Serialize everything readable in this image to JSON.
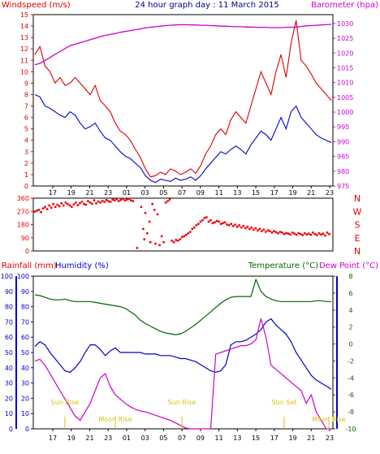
{
  "title": "24 hour graph day : 11 March 2015",
  "colors": {
    "wind": "#dd0000",
    "windavg": "#0000cc",
    "baro": "#cc00cc",
    "dir": "#ee0000",
    "rain": "#0000cc",
    "hum": "#0000cc",
    "temp": "#006600",
    "dew": "#cc00cc",
    "event": "#d8c000",
    "grid": "#000000"
  },
  "chart_data": [
    {
      "id": "wind",
      "type": "line",
      "title": "24 hour graph day : 11 March 2015",
      "x_ticks": [
        "17",
        "19",
        "21",
        "23",
        "01",
        "03",
        "05",
        "07",
        "09",
        "11",
        "13",
        "15",
        "17",
        "19",
        "21",
        "23"
      ],
      "y_left_label": "Windspeed (m/s)",
      "y_left_range": [
        0,
        15
      ],
      "y_left_ticks": [
        0,
        1,
        2,
        3,
        4,
        5,
        6,
        7,
        8,
        9,
        10,
        11,
        12,
        13,
        14,
        15
      ],
      "y_right_label": "Barometer (hpa)",
      "y_right_range": [
        975,
        1033
      ],
      "y_right_ticks": [
        975,
        980,
        985,
        990,
        995,
        1000,
        1005,
        1010,
        1015,
        1020,
        1025,
        1030
      ],
      "series": [
        {
          "key": "gust",
          "color_key": "wind",
          "values": [
            11.5,
            12.2,
            10.5,
            10.0,
            9.0,
            9.5,
            8.8,
            9.0,
            9.5,
            9.0,
            8.5,
            8.0,
            8.8,
            7.5,
            7.0,
            6.5,
            5.5,
            4.8,
            4.5,
            4.0,
            3.2,
            2.5,
            1.5,
            0.8,
            0.9,
            1.2,
            1.0,
            1.5,
            1.3,
            1.0,
            1.2,
            1.5,
            1.1,
            1.8,
            2.8,
            3.5,
            4.5,
            5.0,
            4.5,
            5.8,
            6.5,
            6.0,
            5.5,
            7.0,
            8.5,
            10.0,
            9.0,
            8.0,
            10.0,
            11.5,
            9.5,
            12.5,
            14.5,
            11.0,
            10.5,
            9.8,
            9.0,
            8.5,
            8.0,
            7.5
          ]
        },
        {
          "key": "avg",
          "color_key": "windavg",
          "values": [
            8.0,
            7.8,
            7.0,
            6.8,
            6.5,
            6.2,
            6.0,
            6.5,
            6.2,
            5.5,
            5.0,
            5.2,
            5.5,
            4.8,
            4.2,
            4.0,
            3.5,
            3.0,
            2.6,
            2.4,
            2.0,
            1.6,
            0.9,
            0.5,
            0.3,
            0.6,
            0.5,
            0.4,
            0.7,
            0.5,
            0.6,
            0.8,
            0.5,
            0.9,
            1.5,
            2.0,
            2.5,
            3.0,
            2.8,
            3.2,
            3.5,
            3.2,
            2.8,
            3.6,
            4.2,
            4.8,
            4.5,
            4.0,
            5.0,
            6.0,
            5.0,
            6.5,
            7.0,
            6.0,
            5.5,
            5.0,
            4.5,
            4.2,
            4.0,
            3.8
          ]
        },
        {
          "key": "baro",
          "color_key": "baro",
          "axis": "right",
          "values": [
            1016.0,
            1016.5,
            1017.5,
            1018.5,
            1019.5,
            1020.5,
            1021.5,
            1022.5,
            1023.0,
            1023.5,
            1024.0,
            1024.5,
            1025.0,
            1025.5,
            1026.0,
            1026.3,
            1026.6,
            1027.0,
            1027.3,
            1027.6,
            1027.9,
            1028.2,
            1028.5,
            1028.7,
            1028.9,
            1029.1,
            1029.3,
            1029.4,
            1029.5,
            1029.6,
            1029.6,
            1029.5,
            1029.5,
            1029.4,
            1029.4,
            1029.3,
            1029.2,
            1029.1,
            1029.1,
            1029.0,
            1028.9,
            1028.9,
            1028.8,
            1028.8,
            1028.7,
            1028.7,
            1028.7,
            1028.6,
            1028.6,
            1028.6,
            1028.7,
            1028.7,
            1028.8,
            1029.0,
            1029.2,
            1029.3,
            1029.4,
            1029.5,
            1029.6,
            1029.7
          ]
        }
      ]
    },
    {
      "id": "dir",
      "type": "scatter",
      "y_range": [
        0,
        360
      ],
      "y_ticks": [
        0,
        90,
        180,
        270,
        360
      ],
      "right_labels": [
        "N",
        "W",
        "S",
        "E",
        "N"
      ],
      "color_key": "dir",
      "points": [
        [
          0,
          268
        ],
        [
          2,
          275
        ],
        [
          4,
          280
        ],
        [
          6,
          265
        ],
        [
          8,
          290
        ],
        [
          10,
          300
        ],
        [
          12,
          285
        ],
        [
          14,
          310
        ],
        [
          16,
          295
        ],
        [
          18,
          320
        ],
        [
          20,
          300
        ],
        [
          22,
          315
        ],
        [
          24,
          305
        ],
        [
          26,
          325
        ],
        [
          28,
          310
        ],
        [
          30,
          330
        ],
        [
          32,
          320
        ],
        [
          34,
          310
        ],
        [
          36,
          300
        ],
        [
          38,
          318
        ],
        [
          40,
          330
        ],
        [
          42,
          312
        ],
        [
          44,
          325
        ],
        [
          46,
          335
        ],
        [
          48,
          320
        ],
        [
          50,
          315
        ],
        [
          52,
          340
        ],
        [
          54,
          330
        ],
        [
          56,
          322
        ],
        [
          58,
          345
        ],
        [
          60,
          325
        ],
        [
          62,
          338
        ],
        [
          64,
          330
        ],
        [
          66,
          342
        ],
        [
          68,
          335
        ],
        [
          70,
          348
        ],
        [
          72,
          340
        ],
        [
          74,
          335
        ],
        [
          76,
          350
        ],
        [
          78,
          345
        ],
        [
          80,
          352
        ],
        [
          82,
          340
        ],
        [
          84,
          348
        ],
        [
          86,
          355
        ],
        [
          88,
          345
        ],
        [
          90,
          350
        ],
        [
          92,
          355
        ],
        [
          94,
          345
        ],
        [
          96,
          340
        ],
        [
          100,
          20
        ],
        [
          104,
          300
        ],
        [
          106,
          150
        ],
        [
          107,
          80
        ],
        [
          108,
          260
        ],
        [
          110,
          120
        ],
        [
          112,
          200
        ],
        [
          113,
          60
        ],
        [
          115,
          320
        ],
        [
          117,
          280
        ],
        [
          118,
          50
        ],
        [
          120,
          250
        ],
        [
          122,
          40
        ],
        [
          124,
          100
        ],
        [
          126,
          60
        ],
        [
          128,
          330
        ],
        [
          130,
          340
        ],
        [
          132,
          350
        ],
        [
          134,
          70
        ],
        [
          136,
          60
        ],
        [
          138,
          75
        ],
        [
          140,
          70
        ],
        [
          142,
          80
        ],
        [
          144,
          95
        ],
        [
          146,
          100
        ],
        [
          148,
          110
        ],
        [
          150,
          120
        ],
        [
          152,
          130
        ],
        [
          154,
          150
        ],
        [
          156,
          160
        ],
        [
          158,
          175
        ],
        [
          160,
          185
        ],
        [
          162,
          200
        ],
        [
          164,
          210
        ],
        [
          166,
          225
        ],
        [
          168,
          230
        ],
        [
          170,
          200
        ],
        [
          172,
          210
        ],
        [
          174,
          190
        ],
        [
          176,
          195
        ],
        [
          178,
          205
        ],
        [
          180,
          200
        ],
        [
          182,
          185
        ],
        [
          184,
          190
        ],
        [
          186,
          195
        ],
        [
          188,
          180
        ],
        [
          190,
          175
        ],
        [
          192,
          185
        ],
        [
          194,
          170
        ],
        [
          196,
          180
        ],
        [
          198,
          165
        ],
        [
          200,
          175
        ],
        [
          202,
          160
        ],
        [
          204,
          170
        ],
        [
          206,
          155
        ],
        [
          208,
          165
        ],
        [
          210,
          150
        ],
        [
          212,
          160
        ],
        [
          214,
          145
        ],
        [
          216,
          155
        ],
        [
          218,
          140
        ],
        [
          220,
          150
        ],
        [
          222,
          135
        ],
        [
          224,
          145
        ],
        [
          226,
          130
        ],
        [
          228,
          140
        ],
        [
          230,
          135
        ],
        [
          232,
          125
        ],
        [
          234,
          135
        ],
        [
          236,
          128
        ],
        [
          238,
          120
        ],
        [
          240,
          130
        ],
        [
          242,
          125
        ],
        [
          244,
          115
        ],
        [
          246,
          122
        ],
        [
          248,
          118
        ],
        [
          250,
          112
        ],
        [
          252,
          125
        ],
        [
          254,
          118
        ],
        [
          256,
          110
        ],
        [
          258,
          122
        ],
        [
          260,
          115
        ],
        [
          262,
          108
        ],
        [
          264,
          120
        ],
        [
          266,
          112
        ],
        [
          268,
          118
        ],
        [
          270,
          110
        ],
        [
          272,
          125
        ],
        [
          274,
          115
        ],
        [
          276,
          108
        ],
        [
          278,
          120
        ],
        [
          280,
          112
        ],
        [
          282,
          118
        ],
        [
          284,
          105
        ],
        [
          286,
          125
        ],
        [
          288,
          115
        ]
      ]
    },
    {
      "id": "thermo",
      "type": "line",
      "x_ticks": [
        "17",
        "19",
        "21",
        "23",
        "01",
        "03",
        "05",
        "07",
        "09",
        "11",
        "13",
        "15",
        "17",
        "19",
        "21",
        "23"
      ],
      "y_left_label": "Rainfall (mm)",
      "y_left_range": [
        0,
        100
      ],
      "y_left_ticks": [
        0,
        10,
        20,
        30,
        40,
        50,
        60,
        70,
        80,
        90,
        100
      ],
      "y_left2_label": "Humidity (%)",
      "y_left2_range": [
        0,
        100
      ],
      "y_left2_ticks": [
        0,
        10,
        20,
        30,
        40,
        50,
        60,
        70,
        80,
        90,
        100
      ],
      "y_right_label": "Temperature (°C)",
      "y_right2_label": "Dew Point (°C)",
      "y_right_range": [
        -10,
        8
      ],
      "y_right_ticks": [
        -10,
        -8,
        -6,
        -4,
        -2,
        0,
        2,
        4,
        6,
        8
      ],
      "series": [
        {
          "key": "temp",
          "color_key": "temp",
          "axis": "right",
          "values": [
            5.8,
            5.7,
            5.5,
            5.3,
            5.2,
            5.2,
            5.3,
            5.1,
            5.0,
            5.0,
            5.0,
            5.0,
            4.9,
            4.8,
            4.7,
            4.6,
            4.5,
            4.4,
            4.2,
            3.8,
            3.4,
            2.8,
            2.4,
            2.1,
            1.8,
            1.5,
            1.3,
            1.2,
            1.1,
            1.2,
            1.5,
            1.9,
            2.3,
            2.8,
            3.3,
            3.8,
            4.3,
            4.8,
            5.2,
            5.5,
            5.6,
            5.6,
            5.6,
            5.6,
            7.6,
            6.2,
            5.6,
            5.3,
            5.1,
            5.0,
            5.0,
            5.0,
            5.0,
            5.0,
            5.0,
            5.0,
            5.1,
            5.1,
            5.0,
            5.0
          ]
        },
        {
          "key": "hum",
          "color_key": "hum",
          "values": [
            54,
            57,
            55,
            50,
            46,
            42,
            38,
            37,
            40,
            44,
            50,
            55,
            55,
            52,
            48,
            51,
            53,
            50,
            50,
            50,
            50,
            50,
            49,
            49,
            49,
            48,
            48,
            48,
            47,
            46,
            46,
            45,
            44,
            42,
            40,
            38,
            37,
            38,
            42,
            55,
            57,
            57,
            58,
            60,
            62,
            65,
            70,
            72,
            68,
            65,
            62,
            57,
            50,
            45,
            40,
            35,
            32,
            30,
            28,
            26
          ]
        },
        {
          "key": "dew",
          "color_key": "dew",
          "axis": "right",
          "values": [
            -2.0,
            -1.8,
            -2.5,
            -3.5,
            -4.5,
            -5.5,
            -6.5,
            -7.5,
            -8.5,
            -9.0,
            -8.0,
            -7.0,
            -5.5,
            -4.0,
            -3.5,
            -5.0,
            -6.0,
            -6.5,
            -7.0,
            -7.4,
            -7.7,
            -7.9,
            -8.0,
            -8.2,
            -8.4,
            -8.6,
            -8.8,
            -9.0,
            -9.3,
            -9.6,
            -9.9,
            -10.0,
            -10.0,
            -10.0,
            -10.0,
            -10.0,
            -1.2,
            -1.0,
            -0.8,
            -0.6,
            -0.4,
            -0.2,
            -0.2,
            0.0,
            0.5,
            3.0,
            0.8,
            -2.5,
            -3.0,
            -3.5,
            -4.0,
            -4.5,
            -5.0,
            -5.5,
            -7.0,
            -6.0,
            -8.0,
            -9.0,
            -10.0,
            -10.0
          ]
        },
        {
          "key": "rain",
          "color_key": "rain",
          "values": [
            0,
            0,
            0,
            0,
            0,
            0,
            0,
            0,
            0,
            0,
            0,
            0,
            0,
            0,
            0,
            0,
            0,
            0,
            0,
            0,
            0,
            0,
            0,
            0,
            0,
            0,
            0,
            0,
            0,
            0,
            0,
            0,
            0,
            0,
            0,
            0,
            0,
            0,
            0,
            0,
            0,
            0,
            0,
            0,
            0,
            0,
            0,
            0,
            0,
            0,
            0,
            0,
            0,
            0,
            0,
            0,
            0,
            0,
            0,
            0
          ]
        }
      ],
      "events": [
        {
          "label": "Sun Rise",
          "hour": 2.7
        },
        {
          "label": "Moon Rise",
          "hour": 4.2
        },
        {
          "label": "Sun Set",
          "hour": 16.3
        },
        {
          "label": "Sun Rise",
          "hour": 13.1
        },
        {
          "label": "Sun Set",
          "hour": 1.4
        },
        {
          "label": "Moon Rise",
          "hour": 23.2
        }
      ]
    }
  ]
}
